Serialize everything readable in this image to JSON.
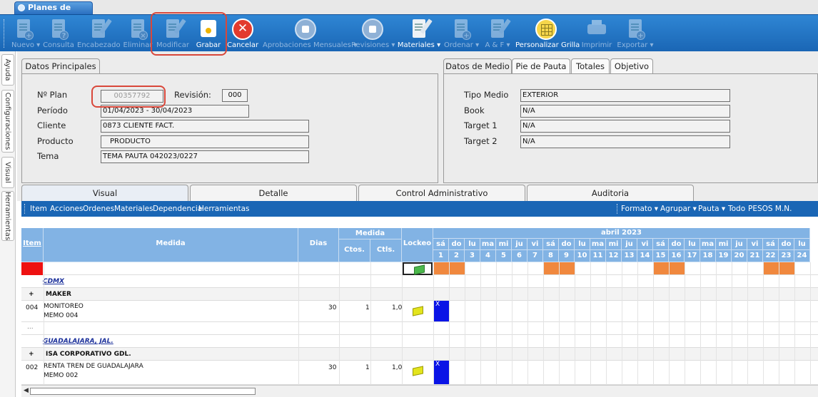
{
  "window_tab": {
    "title": "Planes de Medios"
  },
  "toolbar": {
    "buttons": [
      {
        "label": "Nuevo ▾",
        "enabled": false,
        "icon": "new-document-icon"
      },
      {
        "label": "Consulta",
        "enabled": false,
        "icon": "query-document-icon"
      },
      {
        "label": "Encabezado",
        "enabled": false,
        "icon": "header-edit-icon"
      },
      {
        "label": "Eliminar",
        "enabled": false,
        "icon": "delete-document-icon"
      },
      {
        "label": "Modificar",
        "enabled": false,
        "icon": "edit-document-icon"
      },
      {
        "label": "Grabar",
        "enabled": true,
        "icon": "save-icon"
      },
      {
        "label": "Cancelar",
        "enabled": true,
        "icon": "cancel-icon"
      },
      {
        "label": "Aprobaciones Mensuales ▾",
        "enabled": false,
        "icon": "approval-thumb-icon"
      },
      {
        "label": "Revisiones ▾",
        "enabled": false,
        "icon": "review-thumb-icon"
      },
      {
        "label": "Materiales ▾",
        "enabled": true,
        "icon": "materials-icon"
      },
      {
        "label": "Ordenar ▾",
        "enabled": false,
        "icon": "order-icon"
      },
      {
        "label": "A & F ▾",
        "enabled": false,
        "icon": "af-icon"
      },
      {
        "label": "Personalizar Grilla",
        "enabled": true,
        "icon": "grid-icon"
      },
      {
        "label": "Imprimir",
        "enabled": false,
        "icon": "printer-icon"
      },
      {
        "label": "Exportar ▾",
        "enabled": false,
        "icon": "export-icon"
      }
    ]
  },
  "side_tabs": [
    "Ayuda",
    "Configuraciones",
    "Visual",
    "Herramientas"
  ],
  "datos_principales": {
    "tab_label": "Datos Principales",
    "labels": {
      "plan": "Nº Plan",
      "revision": "Revisión:",
      "periodo": "Período",
      "cliente": "Cliente",
      "producto": "Producto",
      "tema": "Tema"
    },
    "values": {
      "plan": "00357792",
      "revision": "000",
      "periodo": "01/04/2023 - 30/04/2023",
      "cliente": "0873 CLIENTE FACT.",
      "producto": "PRODUCTO",
      "tema": "TEMA PAUTA 042023/0227"
    }
  },
  "datos_medio": {
    "tabs": [
      "Datos de Medio",
      "Pie de Pauta",
      "Totales",
      "Objetivo"
    ],
    "labels": {
      "tipo_medio": "Tipo Medio",
      "book": "Book",
      "target1": "Target 1",
      "target2": "Target 2"
    },
    "values": {
      "tipo_medio": "EXTERIOR",
      "book": "N/A",
      "target1": "N/A",
      "target2": "N/A"
    }
  },
  "bottom_tabs": [
    "Visual",
    "Detalle",
    "Control Administrativo",
    "Auditoria"
  ],
  "subtoolbar": {
    "left": [
      "Item",
      "Acciones",
      "Ordenes",
      "Materiales",
      "Dependencia",
      "Herramientas"
    ],
    "right": [
      "Formato ▾",
      "Agrupar ▾",
      "Pauta ▾",
      "Todo",
      "PESOS M.N."
    ]
  },
  "grid": {
    "headers": {
      "item": "Item",
      "medida": "Medida",
      "dias": "Dias",
      "medida_group": "Medida",
      "ctos": "Ctos.",
      "ctls": "Ctls.",
      "lockeo": "Lockeo",
      "month": "abril 2023"
    },
    "days": [
      {
        "dow": "sá",
        "num": "1",
        "weekend": true
      },
      {
        "dow": "do",
        "num": "2",
        "weekend": true
      },
      {
        "dow": "lu",
        "num": "3",
        "weekend": false
      },
      {
        "dow": "ma",
        "num": "4",
        "weekend": false
      },
      {
        "dow": "mi",
        "num": "5",
        "weekend": false
      },
      {
        "dow": "ju",
        "num": "6",
        "weekend": false
      },
      {
        "dow": "vi",
        "num": "7",
        "weekend": false
      },
      {
        "dow": "sá",
        "num": "8",
        "weekend": true
      },
      {
        "dow": "do",
        "num": "9",
        "weekend": true
      },
      {
        "dow": "lu",
        "num": "10",
        "weekend": false
      },
      {
        "dow": "ma",
        "num": "11",
        "weekend": false
      },
      {
        "dow": "mi",
        "num": "12",
        "weekend": false
      },
      {
        "dow": "ju",
        "num": "13",
        "weekend": false
      },
      {
        "dow": "vi",
        "num": "14",
        "weekend": false
      },
      {
        "dow": "sá",
        "num": "15",
        "weekend": true
      },
      {
        "dow": "do",
        "num": "16",
        "weekend": true
      },
      {
        "dow": "lu",
        "num": "17",
        "weekend": false
      },
      {
        "dow": "ma",
        "num": "18",
        "weekend": false
      },
      {
        "dow": "mi",
        "num": "19",
        "weekend": false
      },
      {
        "dow": "ju",
        "num": "20",
        "weekend": false
      },
      {
        "dow": "vi",
        "num": "21",
        "weekend": false
      },
      {
        "dow": "sá",
        "num": "22",
        "weekend": true
      },
      {
        "dow": "do",
        "num": "23",
        "weekend": true
      },
      {
        "dow": "lu",
        "num": "24",
        "weekend": false
      }
    ],
    "rows": [
      {
        "type": "filter"
      },
      {
        "type": "group",
        "label": "CDMX"
      },
      {
        "type": "subgroup",
        "toggle": "+",
        "label": "MAKER"
      },
      {
        "type": "item",
        "item": "004",
        "medida": "MONITOREO",
        "memo": "MEMO 004",
        "dias": "30",
        "ctos": "1",
        "ctls": "1,0",
        "mark": "X"
      },
      {
        "type": "ellipsis",
        "label": "..."
      },
      {
        "type": "group",
        "label": "GUADALAJARA, JAL."
      },
      {
        "type": "subgroup",
        "toggle": "+",
        "label": "ISA CORPORATIVO GDL."
      },
      {
        "type": "item",
        "item": "002",
        "medida": "RENTA TREN DE GUADALAJARA",
        "memo": "MEMO 002",
        "dias": "30",
        "ctos": "1",
        "ctls": "1,0",
        "mark": "X"
      }
    ]
  },
  "colors": {
    "toolbar": "#1a66b5",
    "header": "#82b3e4",
    "weekend": "#f0883e",
    "scheduled": "#0a14e6",
    "highlight": "#d9473a",
    "group_text": "#1a2f9a"
  }
}
